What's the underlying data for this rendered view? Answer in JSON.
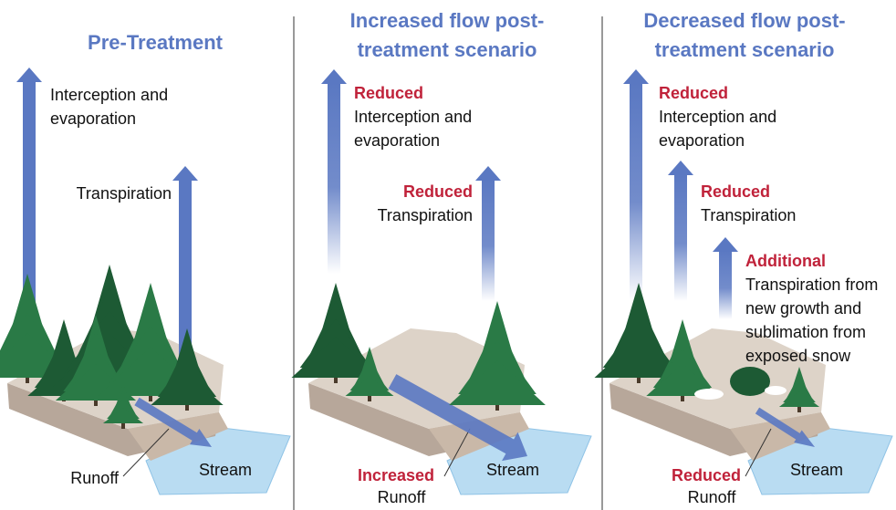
{
  "panels": [
    {
      "title": [
        "Pre-Treatment"
      ],
      "labels": [
        {
          "text": [
            "Interception and",
            "evaporation"
          ]
        },
        {
          "text": [
            "Transpiration"
          ]
        },
        {
          "text": [
            "Runoff"
          ]
        },
        {
          "text": [
            "Stream"
          ]
        }
      ]
    },
    {
      "title": [
        "Increased flow post-",
        "treatment scenario"
      ],
      "labels": [
        {
          "qualifier": "Reduced",
          "text": [
            "Interception and",
            "evaporation"
          ]
        },
        {
          "qualifier": "Reduced",
          "text": [
            "Transpiration"
          ]
        },
        {
          "qualifier": "Increased",
          "text": [
            "Runoff"
          ]
        },
        {
          "text": [
            "Stream"
          ]
        }
      ]
    },
    {
      "title": [
        "Decreased flow post-",
        "treatment scenario"
      ],
      "labels": [
        {
          "qualifier": "Reduced",
          "text": [
            "Interception and",
            "evaporation"
          ]
        },
        {
          "qualifier": "Reduced",
          "text": [
            "Transpiration"
          ]
        },
        {
          "qualifier": "Additional",
          "text": [
            "Transpiration from",
            "new growth and",
            "sublimation from",
            "exposed snow"
          ]
        },
        {
          "qualifier": "Reduced",
          "text": [
            "Runoff"
          ]
        },
        {
          "text": [
            "Stream"
          ]
        }
      ]
    }
  ]
}
